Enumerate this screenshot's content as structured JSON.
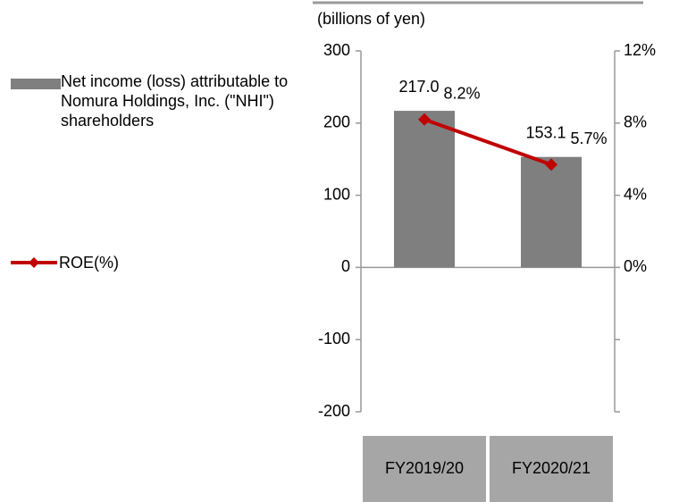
{
  "chart_data": {
    "type": "bar",
    "y_axis_label": "(billions of yen)",
    "categories": [
      "FY2019/20",
      "FY2020/21"
    ],
    "series": [
      {
        "name": "Net income (loss) attributable to Nomura Holdings, Inc. (\"NHI\") shareholders",
        "color": "#7f7f7f",
        "values": [
          217.0,
          153.1
        ],
        "value_labels": [
          "217.0",
          "153.1"
        ]
      },
      {
        "name": "ROE(%)",
        "type": "line",
        "axis": "y2",
        "color": "#c00000",
        "values": [
          8.2,
          5.7
        ],
        "value_labels": [
          "8.2%",
          "5.7%"
        ]
      }
    ],
    "ylim": [
      -200,
      300
    ],
    "yticks": [
      -200,
      -100,
      0,
      100,
      200,
      300
    ],
    "y2lim": [
      -8,
      12
    ],
    "y2ticks": [
      {
        "value": 0,
        "label": "0%"
      },
      {
        "value": 4,
        "label": "4%"
      },
      {
        "value": 8,
        "label": "8%"
      },
      {
        "value": 12,
        "label": "12%"
      }
    ],
    "grid": false,
    "legend": "left"
  }
}
